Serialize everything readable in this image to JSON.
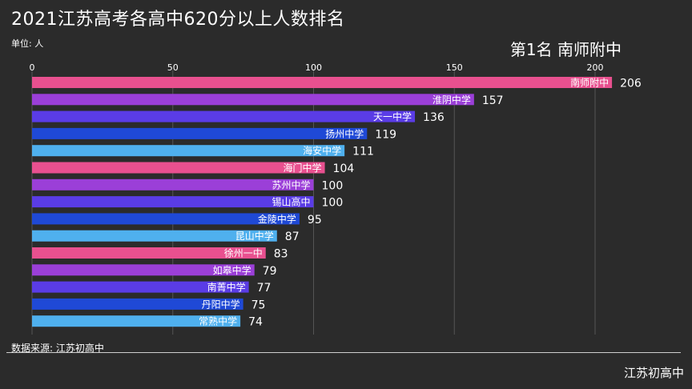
{
  "title": "2021江苏高考各高中620分以上人数排名",
  "unit_label": "单位: 人",
  "rank_label": "第1名 南师附中",
  "source_label": "数据来源: 江苏初高中",
  "watermark": "江苏初高中",
  "colors": {
    "background": "#2b2b2b",
    "pink": "#e8508f",
    "purple": "#9b3fd8",
    "indigo": "#5a3ce6",
    "blue": "#1f49d6",
    "skyblue": "#4fb0ee",
    "grid": "#555555"
  },
  "chart_data": {
    "type": "bar",
    "orientation": "horizontal",
    "xlim": [
      0,
      206
    ],
    "x_ticks": [
      0,
      50,
      100,
      150,
      200
    ],
    "grid": true,
    "categories": [
      "南师附中",
      "淮阴中学",
      "天一中学",
      "扬州中学",
      "海安中学",
      "海门中学",
      "苏州中学",
      "锡山高中",
      "金陵中学",
      "昆山中学",
      "徐州一中",
      "如皋中学",
      "南菁中学",
      "丹阳中学",
      "常熟中学"
    ],
    "values": [
      206,
      157,
      136,
      119,
      111,
      104,
      100,
      100,
      95,
      87,
      83,
      79,
      77,
      75,
      74
    ],
    "bar_colors": [
      "pink",
      "purple",
      "indigo",
      "blue",
      "skyblue",
      "pink",
      "purple",
      "indigo",
      "blue",
      "skyblue",
      "pink",
      "purple",
      "indigo",
      "blue",
      "skyblue"
    ]
  }
}
